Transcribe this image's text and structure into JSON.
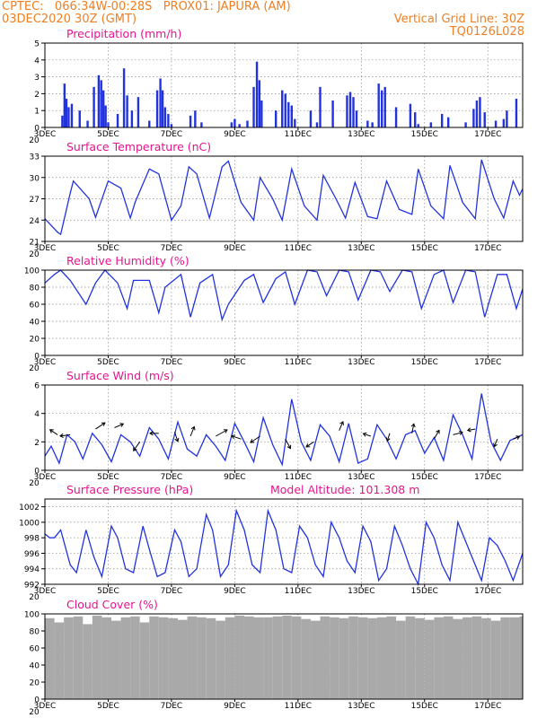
{
  "header": {
    "line1": "CPTEC:   066:34W-00:28S   PROX01: JAPURA (AM)",
    "line2_left": "03DEC2020 30Z (GMT)",
    "line2_right": "Vertical Grid Line: 30Z",
    "line3_right": "TQ0126L028",
    "accent_color": "#ee7f22",
    "title_color": "#e8138f",
    "series_color": "#2233dd"
  },
  "x_tick_labels": [
    "3DEC",
    "5DEC",
    "7DEC",
    "9DEC",
    "11DEC",
    "13DEC",
    "15DEC",
    "17DEC"
  ],
  "x_tick_days": [
    3,
    5,
    7,
    9,
    11,
    13,
    15,
    17
  ],
  "x_range_days": [
    3,
    18.1
  ],
  "year_fragment": "20",
  "chart_data": [
    {
      "type": "bar",
      "title": "Precipitation (mm/h)",
      "ylim": [
        0,
        5
      ],
      "yticks": [
        0,
        1,
        2,
        3,
        4,
        5
      ],
      "x_unit": "day of December 2020",
      "grid": true,
      "x": [
        3.55,
        3.62,
        3.68,
        3.75,
        3.85,
        4.1,
        4.35,
        4.55,
        4.7,
        4.78,
        4.85,
        4.92,
        5.0,
        5.3,
        5.5,
        5.6,
        5.75,
        5.95,
        6.3,
        6.55,
        6.65,
        6.72,
        6.8,
        6.9,
        7.0,
        7.6,
        7.75,
        7.95,
        8.9,
        9.0,
        9.15,
        9.4,
        9.6,
        9.7,
        9.78,
        9.85,
        10.3,
        10.5,
        10.6,
        10.7,
        10.8,
        10.9,
        11.4,
        11.6,
        11.7,
        12.1,
        12.55,
        12.65,
        12.75,
        12.85,
        13.2,
        13.35,
        13.55,
        13.65,
        13.75,
        14.1,
        14.55,
        14.7,
        14.8,
        15.2,
        15.55,
        15.75,
        16.3,
        16.55,
        16.65,
        16.75,
        16.9,
        17.25,
        17.5,
        17.6,
        17.9
      ],
      "values": [
        0.7,
        2.6,
        1.7,
        1.2,
        1.4,
        1.0,
        0.4,
        2.4,
        3.1,
        2.8,
        2.2,
        1.3,
        0.3,
        0.8,
        3.5,
        1.9,
        1.0,
        1.8,
        0.4,
        2.2,
        2.9,
        2.2,
        1.2,
        0.8,
        0.2,
        0.7,
        1.0,
        0.3,
        0.3,
        0.5,
        0.2,
        0.4,
        2.4,
        3.9,
        2.8,
        1.6,
        1.0,
        2.2,
        2.0,
        1.5,
        1.3,
        0.5,
        1.0,
        0.3,
        2.4,
        1.6,
        1.9,
        2.1,
        1.8,
        1.0,
        0.4,
        0.3,
        2.6,
        2.2,
        2.4,
        1.2,
        1.4,
        0.9,
        0.2,
        0.3,
        0.8,
        0.6,
        0.3,
        1.1,
        1.6,
        1.8,
        0.9,
        0.4,
        0.5,
        1.0,
        1.7
      ]
    },
    {
      "type": "line",
      "title": "Surface Temperature (nC)",
      "ylim": [
        21,
        33
      ],
      "yticks": [
        21,
        24,
        27,
        30,
        33
      ],
      "grid": true,
      "x": [
        3.0,
        3.4,
        3.5,
        3.8,
        3.9,
        4.4,
        4.6,
        5.0,
        5.4,
        5.7,
        5.85,
        6.3,
        6.6,
        7.0,
        7.3,
        7.55,
        7.8,
        8.2,
        8.6,
        8.8,
        9.2,
        9.6,
        9.8,
        10.2,
        10.5,
        10.8,
        11.2,
        11.6,
        11.8,
        12.2,
        12.5,
        12.8,
        13.2,
        13.5,
        13.8,
        14.2,
        14.6,
        14.8,
        15.2,
        15.6,
        15.8,
        16.2,
        16.6,
        16.8,
        17.2,
        17.5,
        17.8,
        18.0,
        18.1
      ],
      "values": [
        24.2,
        22.3,
        22.0,
        27.8,
        29.5,
        27.0,
        24.4,
        29.5,
        28.5,
        24.3,
        26.5,
        31.2,
        30.5,
        24.0,
        26.0,
        31.5,
        30.5,
        24.3,
        31.5,
        32.3,
        26.5,
        24.0,
        30.0,
        27.0,
        24.0,
        31.2,
        26.0,
        24.0,
        30.3,
        27.0,
        24.3,
        29.3,
        24.5,
        24.2,
        29.5,
        25.5,
        24.8,
        31.2,
        26.0,
        24.2,
        31.7,
        26.5,
        24.2,
        32.5,
        27.0,
        24.3,
        29.5,
        27.5,
        28.4
      ]
    },
    {
      "type": "line",
      "title": "Relative Humidity (%)",
      "ylim": [
        0,
        100
      ],
      "yticks": [
        0,
        20,
        40,
        60,
        80,
        100
      ],
      "grid": true,
      "x": [
        3.0,
        3.3,
        3.5,
        3.8,
        4.3,
        4.6,
        4.9,
        5.3,
        5.6,
        5.8,
        6.3,
        6.6,
        6.8,
        7.3,
        7.6,
        7.9,
        8.3,
        8.6,
        8.8,
        9.3,
        9.6,
        9.9,
        10.3,
        10.6,
        10.9,
        11.3,
        11.6,
        11.9,
        12.3,
        12.6,
        12.9,
        13.3,
        13.6,
        13.9,
        14.3,
        14.6,
        14.9,
        15.3,
        15.6,
        15.9,
        16.3,
        16.6,
        16.9,
        17.3,
        17.6,
        17.9,
        18.1
      ],
      "values": [
        85,
        95,
        100,
        88,
        60,
        85,
        100,
        85,
        55,
        88,
        88,
        50,
        80,
        95,
        45,
        85,
        95,
        42,
        60,
        88,
        95,
        62,
        90,
        98,
        60,
        100,
        98,
        70,
        100,
        98,
        65,
        100,
        98,
        75,
        100,
        98,
        55,
        95,
        100,
        62,
        100,
        98,
        45,
        95,
        95,
        55,
        78
      ]
    },
    {
      "type": "line",
      "title": "Surface Wind (m/s)",
      "ylim": [
        0,
        6
      ],
      "yticks": [
        0,
        2,
        4,
        6
      ],
      "grid": true,
      "annotation": "wind direction arrows",
      "x": [
        3.0,
        3.2,
        3.45,
        3.7,
        3.95,
        4.2,
        4.5,
        4.8,
        5.1,
        5.4,
        5.7,
        6.0,
        6.3,
        6.6,
        6.9,
        7.2,
        7.5,
        7.8,
        8.1,
        8.4,
        8.7,
        9.0,
        9.3,
        9.6,
        9.9,
        10.2,
        10.5,
        10.8,
        11.1,
        11.4,
        11.7,
        12.0,
        12.3,
        12.6,
        12.9,
        13.2,
        13.5,
        13.8,
        14.1,
        14.4,
        14.7,
        15.0,
        15.3,
        15.6,
        15.9,
        16.2,
        16.5,
        16.8,
        17.1,
        17.4,
        17.7,
        18.1
      ],
      "values": [
        1.0,
        1.7,
        0.5,
        2.5,
        2.0,
        0.8,
        2.6,
        1.8,
        0.6,
        2.5,
        2.0,
        1.0,
        3.0,
        2.2,
        0.8,
        3.4,
        1.5,
        1.0,
        2.5,
        1.7,
        0.7,
        3.3,
        2.0,
        0.6,
        3.7,
        1.8,
        0.4,
        5.0,
        2.0,
        0.7,
        3.2,
        2.4,
        0.6,
        3.3,
        0.5,
        0.8,
        3.2,
        2.2,
        0.8,
        2.5,
        2.8,
        1.2,
        2.3,
        0.7,
        3.9,
        2.5,
        0.8,
        5.4,
        2.0,
        0.7,
        2.1,
        2.5
      ],
      "arrows_x": [
        3.4,
        3.8,
        4.6,
        5.2,
        6.0,
        6.6,
        7.1,
        7.6,
        8.4,
        9.2,
        9.8,
        10.6,
        11.5,
        12.3,
        13.3,
        13.9,
        14.6,
        15.3,
        15.9,
        16.6,
        17.3,
        17.8
      ],
      "arrows_y": [
        2.5,
        2.5,
        2.9,
        3.0,
        2.0,
        2.6,
        2.7,
        2.4,
        2.4,
        2.2,
        2.4,
        2.2,
        2.0,
        2.8,
        2.4,
        2.6,
        2.6,
        2.2,
        2.5,
        2.9,
        2.2,
        2.2
      ],
      "arrows_u": [
        -1.2,
        -1.6,
        1.5,
        1.4,
        -1.0,
        -1.4,
        0.5,
        0.6,
        1.8,
        -1.5,
        -1.5,
        0.8,
        -1.2,
        0.6,
        -1.2,
        -0.4,
        0.3,
        0.8,
        1.5,
        -1.2,
        -0.5,
        1.0
      ],
      "arrows_v": [
        0.8,
        -0.2,
        1.0,
        0.6,
        -1.4,
        0.0,
        -1.5,
        1.5,
        1.0,
        0.5,
        -1.0,
        -1.5,
        -0.8,
        1.4,
        0.4,
        -1.2,
        1.5,
        1.4,
        0.4,
        -0.2,
        -1.2,
        0.4
      ]
    },
    {
      "type": "line",
      "title": "Surface Pressure (hPa)",
      "annotation": "Model Altitude: 101.308  m",
      "ylim": [
        992,
        1003
      ],
      "yticks": [
        992,
        994,
        996,
        998,
        1000,
        1002
      ],
      "grid": true,
      "x": [
        3.0,
        3.15,
        3.3,
        3.5,
        3.8,
        4.0,
        4.3,
        4.55,
        4.8,
        5.1,
        5.3,
        5.55,
        5.8,
        6.1,
        6.3,
        6.55,
        6.8,
        7.1,
        7.3,
        7.55,
        7.8,
        8.1,
        8.3,
        8.55,
        8.8,
        9.05,
        9.3,
        9.55,
        9.8,
        10.05,
        10.3,
        10.55,
        10.8,
        11.05,
        11.3,
        11.55,
        11.8,
        12.05,
        12.3,
        12.55,
        12.8,
        13.05,
        13.3,
        13.55,
        13.8,
        14.05,
        14.3,
        14.55,
        14.8,
        15.05,
        15.3,
        15.55,
        15.8,
        16.05,
        16.3,
        16.55,
        16.8,
        17.05,
        17.3,
        17.55,
        17.8,
        18.1
      ],
      "values": [
        998.5,
        998.0,
        998.0,
        999.0,
        994.5,
        993.5,
        999.0,
        995.5,
        993.0,
        999.5,
        998.0,
        994.0,
        993.5,
        999.5,
        996.5,
        993.0,
        993.5,
        999.0,
        997.5,
        993.0,
        994.0,
        1001.0,
        999.0,
        993.0,
        994.5,
        1001.5,
        999.0,
        994.5,
        993.5,
        1001.5,
        999.0,
        994.0,
        993.5,
        999.5,
        998.0,
        994.5,
        993.0,
        1000.0,
        998.0,
        995.0,
        993.5,
        999.5,
        997.5,
        992.5,
        994.0,
        999.5,
        997.0,
        994.0,
        992.0,
        1000.0,
        998.0,
        994.5,
        992.5,
        1000.0,
        997.5,
        995.0,
        992.5,
        998.0,
        997.0,
        995.0,
        992.5,
        996.0
      ]
    },
    {
      "type": "bar",
      "title": "Cloud Cover (%)",
      "ylim": [
        0,
        100
      ],
      "yticks": [
        0,
        20,
        40,
        60,
        80,
        100
      ],
      "grid": true,
      "x": [
        3.0,
        3.3,
        3.6,
        3.9,
        4.2,
        4.5,
        4.8,
        5.1,
        5.4,
        5.7,
        6.0,
        6.3,
        6.6,
        6.9,
        7.2,
        7.5,
        7.8,
        8.1,
        8.4,
        8.7,
        9.0,
        9.3,
        9.6,
        9.9,
        10.2,
        10.5,
        10.8,
        11.1,
        11.4,
        11.7,
        12.0,
        12.3,
        12.6,
        12.9,
        13.2,
        13.5,
        13.8,
        14.1,
        14.4,
        14.7,
        15.0,
        15.3,
        15.6,
        15.9,
        16.2,
        16.5,
        16.8,
        17.1,
        17.4,
        17.7,
        18.0
      ],
      "values": [
        95,
        90,
        96,
        97,
        88,
        98,
        96,
        92,
        96,
        97,
        90,
        97,
        96,
        95,
        93,
        97,
        96,
        95,
        92,
        96,
        98,
        97,
        96,
        96,
        97,
        98,
        97,
        94,
        92,
        97,
        96,
        95,
        97,
        96,
        95,
        96,
        97,
        92,
        97,
        95,
        93,
        96,
        97,
        94,
        96,
        97,
        95,
        92,
        96,
        96,
        97
      ]
    }
  ]
}
